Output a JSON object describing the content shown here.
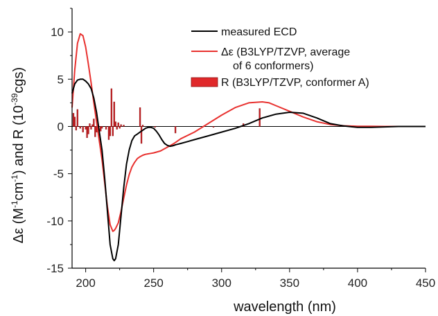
{
  "chart_data": {
    "type": "line",
    "xlabel": "wavelength (nm)",
    "ylabel": {
      "prefix": "Δε (M",
      "sup1": "-1",
      "mid1": "cm",
      "sup2": "-1",
      "mid2": ") and R (10",
      "sup3": "-39",
      "suffix": "cgs)"
    },
    "xlim": [
      190,
      450
    ],
    "ylim": [
      -15,
      12.5
    ],
    "xticks": [
      200,
      250,
      300,
      350,
      400,
      450
    ],
    "yticks": [
      -15,
      -10,
      -5,
      0,
      5,
      10
    ],
    "legend": {
      "position": "top-right",
      "entries": [
        {
          "label": "measured ECD",
          "color": "#000000",
          "kind": "line"
        },
        {
          "label_line1": "Δε (B3LYP/TZVP, average",
          "label_line2": "of 6 conformers)",
          "color": "#e8302e",
          "kind": "line"
        },
        {
          "label": "R (B3LYP/TZVP, conformer A)",
          "color": "#e0282a",
          "kind": "bar"
        }
      ]
    },
    "series": [
      {
        "name": "measured ECD",
        "color": "#000000",
        "x": [
          190,
          192,
          194,
          196,
          198,
          200,
          202,
          204,
          206,
          208,
          210,
          212,
          214,
          216,
          218,
          220,
          221,
          222,
          224,
          226,
          228,
          230,
          232,
          234,
          236,
          238,
          240,
          242,
          244,
          246,
          248,
          250,
          252,
          254,
          256,
          258,
          260,
          262,
          264,
          266,
          270,
          275,
          280,
          290,
          300,
          310,
          320,
          330,
          340,
          350,
          360,
          370,
          380,
          390,
          400,
          410,
          420,
          430,
          440,
          450
        ],
        "y": [
          3.5,
          4.5,
          4.9,
          5.0,
          5.0,
          4.8,
          4.5,
          4.0,
          3.0,
          1.5,
          -0.5,
          -2.5,
          -5.5,
          -9.0,
          -12.5,
          -14.0,
          -14.2,
          -14.0,
          -12.5,
          -9.5,
          -6.5,
          -4.0,
          -2.5,
          -1.5,
          -1.0,
          -0.8,
          -0.6,
          -0.4,
          -0.2,
          -0.1,
          -0.1,
          -0.2,
          -0.5,
          -0.9,
          -1.4,
          -1.8,
          -2.0,
          -2.1,
          -2.05,
          -1.95,
          -1.8,
          -1.6,
          -1.4,
          -1.0,
          -0.6,
          -0.2,
          0.3,
          0.9,
          1.3,
          1.5,
          1.4,
          0.9,
          0.3,
          0.05,
          -0.1,
          -0.1,
          -0.05,
          0,
          0,
          0
        ]
      },
      {
        "name": "Δε (B3LYP/TZVP, average of 6 conformers)",
        "color": "#e8302e",
        "x": [
          190,
          192,
          194,
          196,
          198,
          200,
          202,
          204,
          206,
          208,
          210,
          212,
          214,
          216,
          218,
          220,
          221,
          222,
          224,
          226,
          228,
          230,
          232,
          234,
          236,
          238,
          240,
          242,
          244,
          246,
          248,
          250,
          255,
          260,
          265,
          270,
          280,
          290,
          300,
          310,
          320,
          330,
          335,
          340,
          350,
          360,
          370,
          380,
          390,
          400,
          410,
          420,
          430,
          440,
          450
        ],
        "y": [
          2.0,
          6.0,
          8.8,
          9.8,
          9.6,
          8.4,
          6.6,
          4.6,
          2.5,
          0.5,
          -1.5,
          -3.5,
          -6.0,
          -8.5,
          -10.4,
          -11.1,
          -11.0,
          -10.8,
          -10.2,
          -9.0,
          -7.6,
          -6.2,
          -5.1,
          -4.3,
          -3.8,
          -3.4,
          -3.2,
          -3.05,
          -2.95,
          -2.9,
          -2.85,
          -2.8,
          -2.6,
          -2.2,
          -1.8,
          -1.3,
          -0.6,
          0.3,
          1.2,
          2.0,
          2.5,
          2.6,
          2.5,
          2.2,
          1.6,
          1.0,
          0.5,
          0.2,
          0.07,
          0.02,
          0.01,
          0,
          0,
          0,
          0
        ]
      }
    ],
    "bars": {
      "name": "R (B3LYP/TZVP, conformer A)",
      "color": "#c41e22",
      "edge": "#8b1515",
      "x": [
        191,
        192,
        193,
        194,
        196,
        198,
        200,
        201,
        202,
        203,
        204,
        205,
        206,
        207,
        208,
        211,
        212,
        215,
        217,
        218,
        219,
        220,
        221,
        222,
        223,
        224,
        225,
        226,
        228,
        240,
        241,
        242,
        251,
        266,
        294,
        316,
        328
      ],
      "values": [
        1.4,
        1.0,
        -0.4,
        1.8,
        -0.2,
        -0.6,
        -0.3,
        -1.2,
        -0.8,
        0.3,
        -0.3,
        0.2,
        0.8,
        -1.1,
        -0.6,
        -0.5,
        -0.2,
        -0.3,
        -1.4,
        -1.0,
        4.0,
        -1.0,
        2.6,
        0.5,
        -0.3,
        0.4,
        -0.2,
        0.2,
        0.15,
        2.0,
        -1.8,
        0.15,
        -0.1,
        -0.7,
        -0.1,
        0.3,
        1.9
      ]
    }
  }
}
